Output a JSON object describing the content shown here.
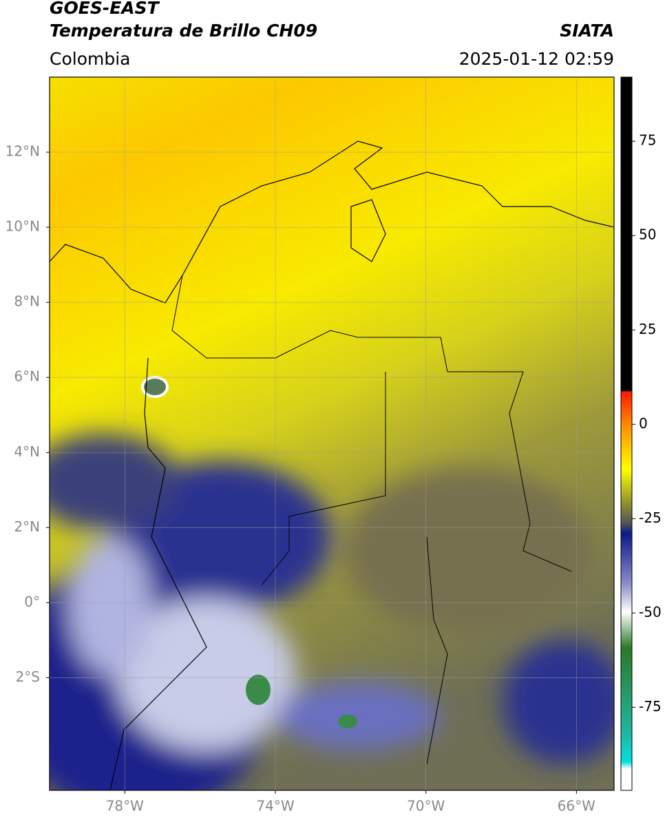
{
  "header": {
    "title": "GOES-EAST",
    "subtitle": "Temperatura de Brillo CH09",
    "source": "SIATA",
    "region": "Colombia",
    "datetime": "2025-01-12 02:59"
  },
  "map": {
    "lon_range": [
      -80,
      -65
    ],
    "lat_range": [
      -5,
      14
    ],
    "lon_ticks": [
      {
        "value": -78,
        "label": "78°W"
      },
      {
        "value": -74,
        "label": "74°W"
      },
      {
        "value": -70,
        "label": "70°W"
      },
      {
        "value": -66,
        "label": "66°W"
      }
    ],
    "lat_ticks": [
      {
        "value": 12,
        "label": "12°N"
      },
      {
        "value": 10,
        "label": "10°N"
      },
      {
        "value": 8,
        "label": "8°N"
      },
      {
        "value": 6,
        "label": "6°N"
      },
      {
        "value": 4,
        "label": "4°N"
      },
      {
        "value": 2,
        "label": "2°N"
      },
      {
        "value": 0,
        "label": "0°"
      },
      {
        "value": -2,
        "label": "2°S"
      }
    ]
  },
  "colorbar": {
    "range": [
      -97,
      92
    ],
    "ticks": [
      75,
      50,
      25,
      0,
      -25,
      -50,
      -75
    ]
  }
}
